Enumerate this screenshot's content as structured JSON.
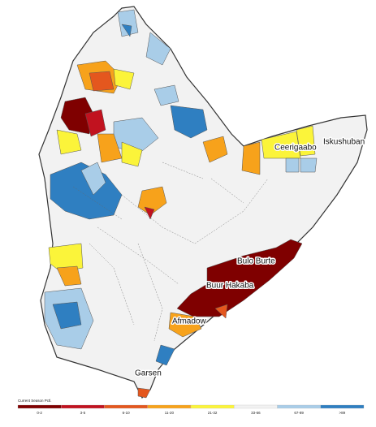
{
  "map": {
    "places": [
      "Bulo Burte",
      "Buur Hakaba",
      "Afmadow",
      "Garsen",
      "Ceerigaabo",
      "Iskushuban"
    ],
    "legend": {
      "title": "Current Season Pctl.",
      "classes": [
        {
          "label": "0-2",
          "color": "#7f0000"
        },
        {
          "label": "3-5",
          "color": "#c1121f"
        },
        {
          "label": "6-10",
          "color": "#e4571e"
        },
        {
          "label": "11-20",
          "color": "#f7a21b"
        },
        {
          "label": "21-32",
          "color": "#fbf43a"
        },
        {
          "label": "33-66",
          "color": "#f2f2f2"
        },
        {
          "label": "67-89",
          "color": "#a9cde8"
        },
        {
          "label": ">89",
          "color": "#2f7fc1"
        }
      ]
    }
  }
}
